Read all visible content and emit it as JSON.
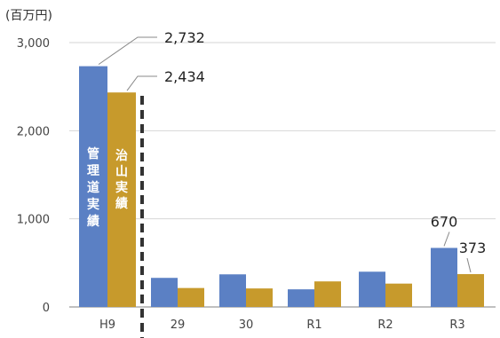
{
  "chart_data": {
    "type": "bar",
    "unit_label": "(百万円)",
    "categories": [
      "H9",
      "29",
      "30",
      "R1",
      "R2",
      "R3"
    ],
    "series": [
      {
        "color": "#5B80C4",
        "values": [
          2732,
          330,
          370,
          200,
          400,
          670
        ]
      },
      {
        "color": "#C79A2C",
        "values": [
          2434,
          215,
          210,
          290,
          265,
          373
        ]
      }
    ],
    "bar_text": [
      "管理道実績",
      "治山実績"
    ],
    "y_ticks": [
      "0",
      "1,000",
      "2,000",
      "3,000"
    ],
    "y_tick_values": [
      0,
      1000,
      2000,
      3000
    ],
    "ylim": [
      0,
      3000
    ],
    "grid": true,
    "data_labels": [
      {
        "series": 0,
        "category": 0,
        "text": "2,732"
      },
      {
        "series": 1,
        "category": 0,
        "text": "2,434"
      },
      {
        "series": 0,
        "category": 5,
        "text": "670"
      },
      {
        "series": 1,
        "category": 5,
        "text": "373"
      }
    ]
  }
}
